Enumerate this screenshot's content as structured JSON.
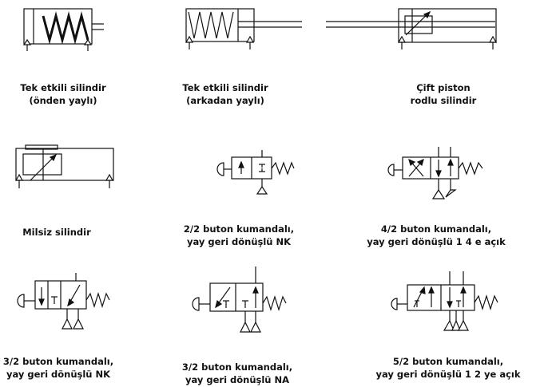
{
  "captions": [
    {
      "line1": "Tek etkili silindir",
      "line2": "(önden yaylı)"
    },
    {
      "line1": "Tek etkili silindir",
      "line2": "(arkadan yaylı)"
    },
    {
      "line1": "Çift piston",
      "line2": "rodlu silindir"
    },
    {
      "line1": "Milsiz silindir",
      "line2": ""
    },
    {
      "line1": "2/2 buton kumandalı,",
      "line2": "yay geri dönüşlü NK"
    },
    {
      "line1": "4/2 buton kumandalı,",
      "line2": "yay geri dönüşlü 1 4 e açık"
    },
    {
      "line1": "3/2 buton kumandalı,",
      "line2": "yay geri dönüşlü NK"
    },
    {
      "line1": "3/2 buton kumandalı,",
      "line2": "yay geri dönüşlü NA"
    },
    {
      "line1": "5/2 buton kumandalı,",
      "line2": "yay geri dönüşlü 1 2 ye açık"
    }
  ]
}
